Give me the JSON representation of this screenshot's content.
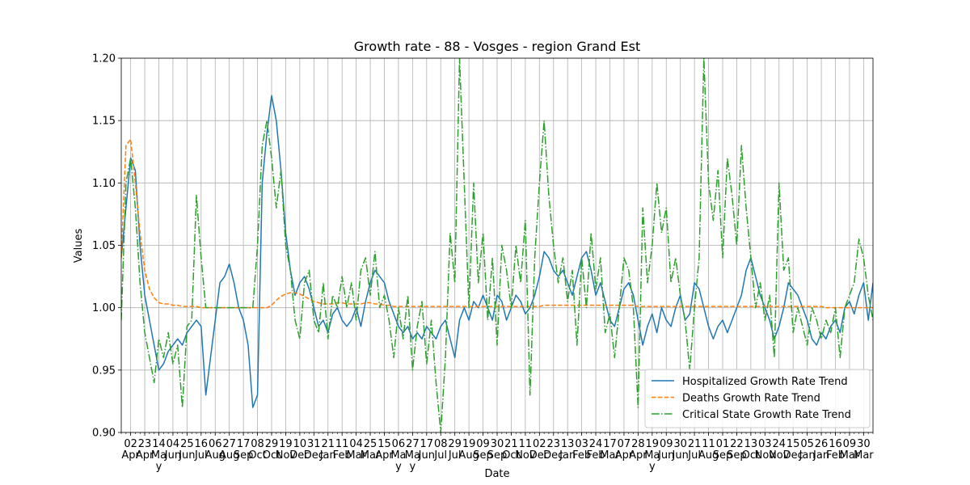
{
  "chart_data": {
    "type": "line",
    "title": "Growth rate - 88 - Vosges - region Grand Est",
    "xlabel": "Date",
    "ylabel": "Values",
    "ylim": [
      0.9,
      1.2
    ],
    "yticks": [
      {
        "value": 0.9,
        "label": "0.90"
      },
      0.95,
      {
        "value": 1.0,
        "label": "1.00"
      },
      1.05,
      {
        "value": 1.1,
        "label": "1.10"
      },
      1.15,
      {
        "value": 1.2,
        "label": "1.20"
      }
    ],
    "grid": true,
    "legend": "lower right",
    "categories": [
      null,
      null,
      "02 Apr",
      null,
      null,
      "23 Apr",
      null,
      null,
      "14 May",
      null,
      null,
      "04 Jun",
      null,
      null,
      "25 Jun",
      null,
      null,
      "16 Jul",
      null,
      null,
      "06 Aug",
      null,
      null,
      "27 Aug",
      null,
      null,
      "17 Sep",
      null,
      null,
      "08 Oct",
      null,
      null,
      "29 Oct",
      null,
      null,
      "19 Nov",
      null,
      null,
      "10 Dec",
      null,
      null,
      "31 Dec",
      null,
      null,
      "21 Jan",
      null,
      null,
      "11 Feb",
      null,
      null,
      "04 Mar",
      null,
      null,
      "25 Mar",
      null,
      null,
      "15 Apr",
      null,
      null,
      "06 May",
      null,
      null,
      "27 May",
      null,
      null,
      "17 Jun",
      null,
      null,
      "08 Jul",
      null,
      null,
      "29 Jul",
      null,
      null,
      "19 Aug",
      null,
      null,
      "09 Sep",
      null,
      null,
      "30 Sep",
      null,
      null,
      "21 Oct",
      null,
      null,
      "11 Nov",
      null,
      null,
      "02 Dec",
      null,
      null,
      "23 Dec",
      null,
      null,
      "13 Jan",
      null,
      null,
      "03 Feb",
      null,
      null,
      "24 Feb",
      null,
      null,
      "17 Mar",
      null,
      null,
      "07 Apr",
      null,
      null,
      "28 Apr",
      null,
      null,
      "19 May",
      null,
      null,
      "09 Jun",
      null,
      null,
      "30 Jun",
      null,
      null,
      "21 Jul",
      null,
      null,
      "11 Aug",
      null,
      null,
      "01 Sep",
      null,
      null,
      "22 Sep",
      null,
      null,
      "13 Oct",
      null,
      null,
      "03 Nov",
      null,
      null,
      "24 Nov",
      null,
      null,
      "15 Dec",
      null,
      null,
      "05 Jan",
      null,
      null,
      "26 Jan",
      null,
      null,
      "16 Feb",
      null,
      null,
      "09 Mar",
      null,
      null,
      "30 Mar",
      null,
      null
    ],
    "series": [
      {
        "name": "Hospitalized Growth Rate Trend",
        "color": "#1f77b4",
        "linestyle": "solid",
        "values": [
          1.04,
          1.08,
          1.12,
          1.11,
          1.05,
          1.01,
          0.99,
          0.97,
          0.95,
          0.955,
          0.965,
          0.97,
          0.975,
          0.97,
          0.98,
          0.985,
          0.99,
          0.985,
          0.93,
          0.96,
          0.99,
          1.02,
          1.025,
          1.035,
          1.02,
          1.0,
          0.99,
          0.97,
          0.92,
          0.93,
          1.1,
          1.14,
          1.17,
          1.15,
          1.11,
          1.06,
          1.03,
          1.01,
          1.02,
          1.025,
          1.015,
          1.0,
          0.985,
          0.99,
          0.98,
          0.995,
          1.0,
          0.99,
          0.985,
          0.99,
          1.0,
          0.985,
          1.005,
          1.02,
          1.03,
          1.025,
          1.02,
          1.005,
          0.995,
          0.985,
          0.98,
          0.985,
          0.975,
          0.98,
          0.975,
          0.985,
          0.98,
          0.975,
          0.985,
          0.99,
          0.975,
          0.96,
          0.99,
          1.0,
          0.99,
          1.005,
          1.0,
          1.01,
          1.0,
          0.99,
          1.01,
          1.005,
          0.99,
          1.0,
          1.01,
          1.005,
          0.995,
          1.0,
          1.01,
          1.025,
          1.045,
          1.04,
          1.03,
          1.025,
          1.03,
          1.02,
          1.01,
          1.025,
          1.04,
          1.045,
          1.03,
          1.01,
          1.02,
          1.005,
          0.99,
          0.985,
          1.0,
          1.015,
          1.02,
          1.01,
          0.99,
          0.97,
          0.985,
          0.995,
          0.98,
          1.0,
          0.99,
          0.985,
          1.0,
          1.01,
          0.99,
          0.995,
          1.02,
          1.015,
          1.0,
          0.985,
          0.975,
          0.985,
          0.99,
          0.98,
          0.99,
          1.0,
          1.01,
          1.03,
          1.04,
          1.025,
          1.01,
          1.0,
          0.99,
          0.975,
          0.985,
          1.0,
          1.02,
          1.015,
          1.01,
          1.0,
          0.99,
          0.975,
          0.97,
          0.98,
          0.975,
          0.985,
          0.99,
          0.98,
          1.0,
          1.005,
          0.995,
          1.01,
          1.02,
          0.99,
          1.02
        ]
      },
      {
        "name": "Deaths Growth Rate Trend",
        "color": "#ff7f0e",
        "linestyle": "dashed",
        "values": [
          1.04,
          1.13,
          1.135,
          1.1,
          1.06,
          1.03,
          1.015,
          1.008,
          1.004,
          1.003,
          1.003,
          1.002,
          1.002,
          1.001,
          1.001,
          1.001,
          1.001,
          1.0,
          1.0,
          1.0,
          1.0,
          1.0,
          1.0,
          1.0,
          1.0,
          1.0,
          1.0,
          1.0,
          1.0,
          1.0,
          1.0,
          1.0,
          1.002,
          1.006,
          1.009,
          1.011,
          1.012,
          1.012,
          1.011,
          1.009,
          1.007,
          1.005,
          1.004,
          1.003,
          1.003,
          1.003,
          1.004,
          1.004,
          1.003,
          1.003,
          1.003,
          1.003,
          1.004,
          1.004,
          1.003,
          1.003,
          1.002,
          1.002,
          1.001,
          1.001,
          1.001,
          1.001,
          1.001,
          1.001,
          1.001,
          1.001,
          1.001,
          1.001,
          1.001,
          1.001,
          1.001,
          1.001,
          1.001,
          1.001,
          1.001,
          1.001,
          1.001,
          1.001,
          1.001,
          1.001,
          1.001,
          1.001,
          1.001,
          1.001,
          1.001,
          1.001,
          1.001,
          1.001,
          1.001,
          1.001,
          1.002,
          1.002,
          1.002,
          1.002,
          1.002,
          1.002,
          1.002,
          1.002,
          1.002,
          1.002,
          1.002,
          1.002,
          1.002,
          1.002,
          1.002,
          1.002,
          1.002,
          1.002,
          1.002,
          1.002,
          1.001,
          1.001,
          1.001,
          1.001,
          1.001,
          1.001,
          1.001,
          1.001,
          1.001,
          1.001,
          1.001,
          1.001,
          1.001,
          1.001,
          1.001,
          1.001,
          1.001,
          1.001,
          1.001,
          1.001,
          1.001,
          1.001,
          1.001,
          1.001,
          1.001,
          1.001,
          1.001,
          1.001,
          1.001,
          1.001,
          1.001,
          1.001,
          1.001,
          1.001,
          1.001,
          1.001,
          1.001,
          1.001,
          1.001,
          1.001,
          1.0,
          1.0,
          1.0,
          1.0,
          1.0,
          1.0,
          1.0,
          1.0,
          1.0,
          1.0,
          1.0
        ]
      },
      {
        "name": "Critical State Growth Rate Trend",
        "color": "#2ca02c",
        "linestyle": "dashdot",
        "values": [
          0.99,
          1.1,
          1.12,
          1.08,
          1.02,
          0.98,
          0.96,
          0.94,
          0.975,
          0.96,
          0.98,
          0.955,
          0.97,
          0.92,
          0.985,
          0.99,
          1.09,
          1.04,
          1.0,
          1.0,
          1.0,
          1.0,
          1.0,
          1.0,
          1.0,
          1.0,
          1.0,
          1.0,
          1.0,
          1.05,
          1.13,
          1.15,
          1.12,
          1.08,
          1.11,
          1.05,
          1.03,
          0.99,
          0.975,
          1.02,
          1.03,
          0.99,
          0.98,
          1.02,
          0.975,
          1.01,
          1.0,
          1.025,
          1.0,
          1.02,
          0.99,
          1.03,
          1.04,
          1.01,
          1.045,
          1.0,
          1.01,
          0.99,
          0.96,
          1.0,
          0.975,
          1.01,
          0.95,
          0.985,
          1.005,
          0.955,
          0.99,
          0.94,
          0.9,
          0.96,
          1.06,
          1.02,
          1.2,
          1.1,
          1.0,
          1.1,
          1.02,
          1.06,
          0.99,
          1.04,
          0.97,
          1.05,
          1.03,
          1.0,
          1.05,
          1.02,
          1.07,
          0.93,
          1.04,
          1.1,
          1.15,
          1.09,
          1.05,
          1.02,
          1.04,
          1.005,
          1.03,
          0.97,
          1.04,
          1.0,
          1.06,
          1.015,
          1.04,
          0.98,
          0.995,
          0.96,
          1.0,
          1.04,
          1.03,
          1.0,
          0.92,
          1.08,
          1.02,
          1.05,
          1.1,
          1.06,
          1.08,
          1.02,
          1.04,
          1.01,
          0.99,
          0.95,
          1.0,
          1.04,
          1.2,
          1.1,
          1.07,
          1.11,
          1.04,
          1.12,
          1.09,
          1.05,
          1.13,
          1.08,
          1.04,
          1.0,
          1.02,
          0.99,
          1.01,
          0.96,
          1.1,
          1.03,
          1.04,
          0.98,
          1.0,
          0.985,
          0.97,
          1.0,
          0.99,
          0.975,
          0.99,
          0.98,
          1.0,
          0.96,
          1.0,
          1.01,
          1.02,
          1.055,
          1.04,
          1.01,
          0.99
        ]
      }
    ]
  }
}
